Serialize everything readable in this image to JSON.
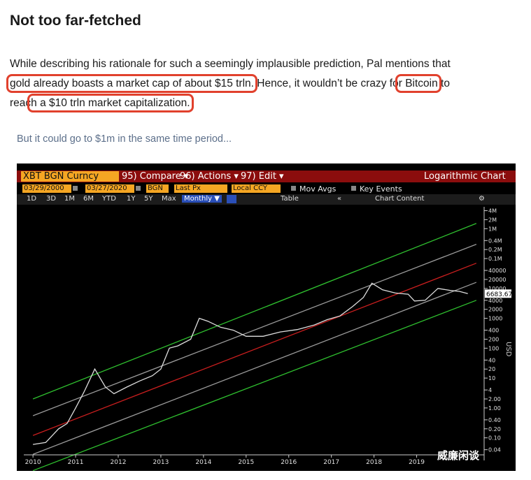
{
  "article": {
    "heading": "Not too far-fetched",
    "line1": "While describing his rationale for such a seemingly implausible prediction, Pal mentions that",
    "line2_hl": "gold already boasts a market cap of about $15 trln.",
    "line2_mid": " Hence, it wouldn’t be crazy fo",
    "line2_bitcoin": "r Bitcoin",
    "line2_end": " to",
    "line3_start": "reac",
    "line3_hl": "h a $10 trln market capitalization.",
    "caption": "But it could go to $1m in the same time period..."
  },
  "terminal": {
    "security": "XBT BGN Curncy",
    "compare": "95) Compare ▾",
    "actions": "96) Actions ▾",
    "edit": "97) Edit ▾",
    "chart_mode": "Logarithmic Chart",
    "start_date": "03/29/2000",
    "end_date": "03/27/2020",
    "source": "BGN",
    "field": "Last Px",
    "currency": "Local CCY",
    "mov_avgs": "Mov Avgs",
    "key_events": "Key Events",
    "ranges": [
      "1D",
      "3D",
      "1M",
      "6M",
      "YTD",
      "1Y",
      "5Y",
      "Max"
    ],
    "period": "Monthly ▼",
    "table": "Table",
    "chart_content": "Chart Content",
    "scroll": "«",
    "last_price_label": "6683.67",
    "watermark": "威廉闲谈"
  },
  "chart_data": {
    "type": "line",
    "title": "",
    "scale": "log",
    "x": [
      2010.0,
      2010.3,
      2010.6,
      2010.8,
      2011.0,
      2011.2,
      2011.45,
      2011.7,
      2011.9,
      2012.2,
      2012.5,
      2012.8,
      2013.0,
      2013.2,
      2013.4,
      2013.7,
      2013.9,
      2014.1,
      2014.4,
      2014.7,
      2015.0,
      2015.4,
      2015.8,
      2016.2,
      2016.6,
      2016.9,
      2017.2,
      2017.5,
      2017.75,
      2017.95,
      2018.2,
      2018.5,
      2018.8,
      2018.95,
      2019.2,
      2019.5,
      2019.8,
      2020.0,
      2020.2
    ],
    "values": [
      0.06,
      0.07,
      0.2,
      0.3,
      1.0,
      3.5,
      20,
      5,
      3,
      5,
      8,
      12,
      20,
      100,
      120,
      200,
      1000,
      800,
      500,
      400,
      250,
      250,
      350,
      420,
      600,
      900,
      1200,
      2500,
      5000,
      15000,
      9000,
      7000,
      6400,
      3800,
      4000,
      10000,
      8500,
      8000,
      6683.67
    ],
    "xlim": [
      2009.85,
      2020.55
    ],
    "ylim": [
      0.03,
      6000000
    ],
    "x_ticks": [
      "2010",
      "2011",
      "2012",
      "2013",
      "2014",
      "2015",
      "2016",
      "2017",
      "2018",
      "2019"
    ],
    "y_ticks": [
      {
        "label": "4M",
        "value": 4000000
      },
      {
        "label": "2M",
        "value": 2000000
      },
      {
        "label": "1M",
        "value": 1000000
      },
      {
        "label": "0.4M",
        "value": 400000
      },
      {
        "label": "0.2M",
        "value": 200000
      },
      {
        "label": "0.1M",
        "value": 100000
      },
      {
        "label": "40000",
        "value": 40000
      },
      {
        "label": "20000",
        "value": 20000
      },
      {
        "label": "10000",
        "value": 10000
      },
      {
        "label": "4000",
        "value": 4000
      },
      {
        "label": "2000",
        "value": 2000
      },
      {
        "label": "1000",
        "value": 1000
      },
      {
        "label": "400",
        "value": 400
      },
      {
        "label": "200",
        "value": 200
      },
      {
        "label": "100",
        "value": 100
      },
      {
        "label": "40",
        "value": 40
      },
      {
        "label": "20",
        "value": 20
      },
      {
        "label": "10",
        "value": 10
      },
      {
        "label": "4",
        "value": 4
      },
      {
        "label": "2.00",
        "value": 2
      },
      {
        "label": "1.00",
        "value": 1
      },
      {
        "label": "0.40",
        "value": 0.4
      },
      {
        "label": "0.20",
        "value": 0.2
      },
      {
        "label": "0.10",
        "value": 0.1
      },
      {
        "label": "0.04",
        "value": 0.04
      }
    ],
    "usd_label": "USD",
    "channel_lines": [
      {
        "color": "#2fc02f",
        "start": 2.0,
        "end": 1500000
      },
      {
        "color": "#9a9a9a",
        "start": 0.55,
        "end": 300000
      },
      {
        "color": "#c81e1e",
        "start": 0.12,
        "end": 70000
      },
      {
        "color": "#9a9a9a",
        "start": 0.028,
        "end": 16000
      },
      {
        "color": "#2fc02f",
        "start": 0.008,
        "end": 4000
      }
    ],
    "colors": {
      "series": "#dddddd",
      "background": "#000000"
    }
  }
}
